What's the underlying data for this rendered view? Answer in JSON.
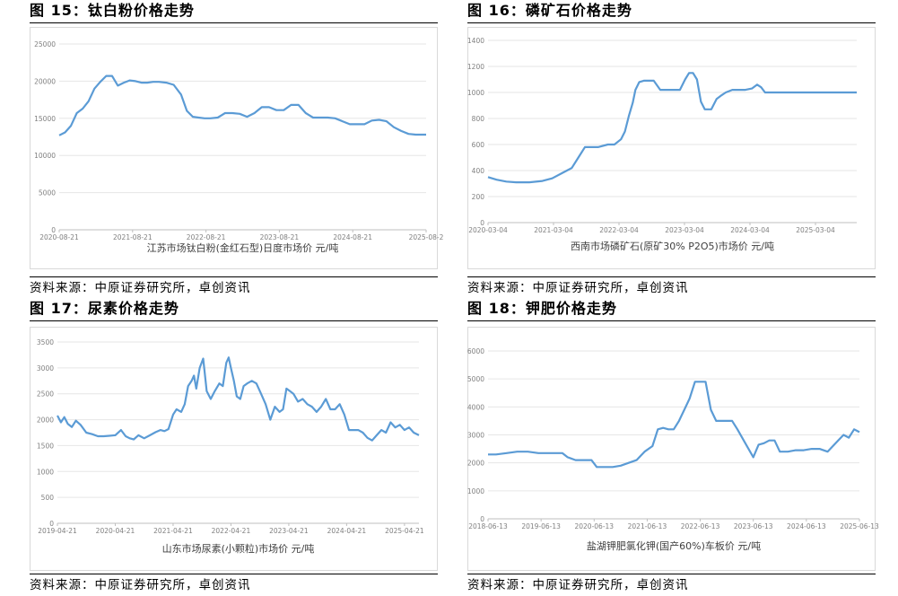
{
  "figures": [
    {
      "title": "图 15：钛白粉价格走势",
      "source": "资料来源：中原证券研究所，卓创资讯",
      "chart_data": {
        "type": "line",
        "xlabel": "江苏市场钛白粉(金红石型)日度市场价 元/吨",
        "ylabel": "",
        "ylim": [
          0,
          25000
        ],
        "yticks": [
          0,
          5000,
          10000,
          15000,
          20000,
          25000
        ],
        "xlim": [
          2020.64,
          2025.64
        ],
        "xticks": [
          2020.64,
          2021.64,
          2022.64,
          2023.64,
          2024.64,
          2025.64
        ],
        "xticklabels": [
          "2020-08-21",
          "2021-08-21",
          "2022-08-21",
          "2023-08-21",
          "2024-08-21",
          "2025-08-2"
        ],
        "grid": true,
        "color": "#5b9bd5",
        "series": [
          {
            "x": [
              2020.64,
              2020.72,
              2020.8,
              2020.88,
              2020.96,
              2021.04,
              2021.12,
              2021.2,
              2021.28,
              2021.36,
              2021.44,
              2021.52,
              2021.6,
              2021.68,
              2021.76,
              2021.84,
              2021.92,
              2022.0,
              2022.1,
              2022.2,
              2022.3,
              2022.38,
              2022.46,
              2022.54,
              2022.62,
              2022.7,
              2022.8,
              2022.9,
              2023.0,
              2023.1,
              2023.2,
              2023.3,
              2023.4,
              2023.5,
              2023.6,
              2023.7,
              2023.8,
              2023.9,
              2024.0,
              2024.1,
              2024.2,
              2024.3,
              2024.4,
              2024.5,
              2024.6,
              2024.7,
              2024.8,
              2024.9,
              2025.0,
              2025.1,
              2025.2,
              2025.3,
              2025.4,
              2025.5,
              2025.6,
              2025.64
            ],
            "y": [
              12700,
              13100,
              14000,
              15700,
              16300,
              17300,
              19000,
              19900,
              20700,
              20700,
              19400,
              19800,
              20100,
              20000,
              19800,
              19800,
              19900,
              19900,
              19800,
              19500,
              18200,
              16000,
              15200,
              15100,
              15000,
              15000,
              15100,
              15700,
              15700,
              15600,
              15200,
              15700,
              16500,
              16500,
              16100,
              16100,
              16800,
              16800,
              15700,
              15100,
              15100,
              15100,
              15000,
              14600,
              14200,
              14200,
              14200,
              14700,
              14800,
              14600,
              13800,
              13300,
              12900,
              12800,
              12800,
              12800
            ]
          }
        ]
      }
    },
    {
      "title": "图 16：磷矿石价格走势",
      "source": "资料来源：中原证券研究所，卓创资讯",
      "chart_data": {
        "type": "line",
        "xlabel": "西南市场磷矿石(原矿30% P2O5)市场价 元/吨",
        "ylabel": "",
        "ylim": [
          0,
          1400
        ],
        "yticks": [
          0,
          200,
          400,
          600,
          800,
          1000,
          1200,
          1400
        ],
        "xlim": [
          2020.17,
          2025.8
        ],
        "xticks": [
          2020.17,
          2021.17,
          2022.17,
          2023.17,
          2024.17,
          2025.17
        ],
        "xticklabels": [
          "2020-03-04",
          "2021-03-04",
          "2022-03-04",
          "2023-03-04",
          "2024-03-04",
          "2025-03-04"
        ],
        "grid": true,
        "color": "#5b9bd5",
        "series": [
          {
            "x": [
              2020.17,
              2020.3,
              2020.45,
              2020.6,
              2020.8,
              2021.0,
              2021.15,
              2021.3,
              2021.45,
              2021.55,
              2021.65,
              2021.75,
              2021.85,
              2022.0,
              2022.1,
              2022.2,
              2022.26,
              2022.32,
              2022.38,
              2022.42,
              2022.48,
              2022.55,
              2022.6,
              2022.7,
              2022.8,
              2022.9,
              2023.0,
              2023.1,
              2023.18,
              2023.24,
              2023.3,
              2023.36,
              2023.42,
              2023.48,
              2023.58,
              2023.66,
              2023.74,
              2023.8,
              2023.9,
              2024.0,
              2024.1,
              2024.2,
              2024.28,
              2024.34,
              2024.4,
              2024.6,
              2024.8,
              2025.0,
              2025.2,
              2025.4,
              2025.6,
              2025.8
            ],
            "y": [
              350,
              330,
              315,
              310,
              310,
              320,
              340,
              380,
              420,
              500,
              580,
              580,
              580,
              600,
              600,
              640,
              700,
              820,
              920,
              1020,
              1080,
              1090,
              1090,
              1090,
              1020,
              1020,
              1020,
              1020,
              1100,
              1150,
              1150,
              1100,
              930,
              870,
              870,
              950,
              980,
              1000,
              1020,
              1020,
              1020,
              1030,
              1060,
              1040,
              1000,
              1000,
              1000,
              1000,
              1000,
              1000,
              1000,
              1000
            ]
          }
        ]
      }
    },
    {
      "title": "图 17：尿素价格走势",
      "source": "资料来源：中原证券研究所，卓创资讯",
      "chart_data": {
        "type": "line",
        "xlabel": "山东市场尿素(小颗粒)市场价 元/吨",
        "ylabel": "",
        "ylim": [
          0,
          3500
        ],
        "yticks": [
          0,
          500,
          1000,
          1500,
          2000,
          2500,
          3000,
          3500
        ],
        "xlim": [
          2019.3,
          2025.55
        ],
        "xticks": [
          2019.3,
          2020.3,
          2021.3,
          2022.3,
          2023.3,
          2024.3,
          2025.3
        ],
        "xticklabels": [
          "2019-04-21",
          "2020-04-21",
          "2021-04-21",
          "2022-04-21",
          "2023-04-21",
          "2024-04-21",
          "2025-04-21"
        ],
        "grid": true,
        "color": "#5b9bd5",
        "series": [
          {
            "x": [
              2019.3,
              2019.36,
              2019.42,
              2019.48,
              2019.55,
              2019.62,
              2019.7,
              2019.8,
              2019.9,
              2020.0,
              2020.1,
              2020.2,
              2020.3,
              2020.4,
              2020.48,
              2020.55,
              2020.62,
              2020.7,
              2020.8,
              2020.9,
              2021.0,
              2021.08,
              2021.15,
              2021.22,
              2021.3,
              2021.36,
              2021.44,
              2021.5,
              2021.56,
              2021.62,
              2021.66,
              2021.7,
              2021.76,
              2021.82,
              2021.88,
              2021.95,
              2022.02,
              2022.1,
              2022.16,
              2022.22,
              2022.26,
              2022.3,
              2022.35,
              2022.4,
              2022.46,
              2022.52,
              2022.58,
              2022.66,
              2022.74,
              2022.82,
              2022.9,
              2022.98,
              2023.06,
              2023.14,
              2023.2,
              2023.26,
              2023.32,
              2023.38,
              2023.46,
              2023.54,
              2023.62,
              2023.7,
              2023.78,
              2023.86,
              2023.94,
              2024.02,
              2024.1,
              2024.18,
              2024.26,
              2024.34,
              2024.42,
              2024.5,
              2024.58,
              2024.66,
              2024.74,
              2024.82,
              2024.9,
              2024.98,
              2025.06,
              2025.14,
              2025.22,
              2025.3,
              2025.38,
              2025.46,
              2025.55
            ],
            "y": [
              2080,
              1950,
              2050,
              1920,
              1860,
              1980,
              1900,
              1750,
              1720,
              1680,
              1680,
              1690,
              1700,
              1800,
              1680,
              1640,
              1620,
              1700,
              1640,
              1700,
              1760,
              1800,
              1780,
              1820,
              2100,
              2200,
              2150,
              2300,
              2650,
              2750,
              2850,
              2600,
              3000,
              3180,
              2550,
              2400,
              2550,
              2700,
              2650,
              3100,
              3200,
              3000,
              2750,
              2450,
              2400,
              2650,
              2700,
              2750,
              2700,
              2500,
              2300,
              2000,
              2250,
              2150,
              2200,
              2600,
              2550,
              2500,
              2350,
              2400,
              2300,
              2250,
              2150,
              2250,
              2400,
              2200,
              2200,
              2300,
              2100,
              1800,
              1800,
              1800,
              1750,
              1650,
              1600,
              1700,
              1800,
              1750,
              1950,
              1850,
              1900,
              1800,
              1850,
              1750,
              1700
            ]
          }
        ]
      }
    },
    {
      "title": "图 18：钾肥价格走势",
      "source": "资料来源：中原证券研究所，卓创资讯",
      "chart_data": {
        "type": "line",
        "xlabel": "盐湖钾肥氯化钾(国产60%)车板价 元/吨",
        "ylabel": "",
        "ylim": [
          0,
          6000
        ],
        "yticks": [
          0,
          1000,
          2000,
          3000,
          4000,
          5000,
          6000
        ],
        "xlim": [
          2018.45,
          2025.45
        ],
        "xticks": [
          2018.45,
          2019.45,
          2020.45,
          2021.45,
          2022.45,
          2023.45,
          2024.45,
          2025.45
        ],
        "xticklabels": [
          "2018-06-13",
          "2019-06-13",
          "2020-06-13",
          "2021-06-13",
          "2022-06-13",
          "2023-06-13",
          "2024-06-13",
          "2025-06-13"
        ],
        "grid": true,
        "color": "#5b9bd5",
        "series": [
          {
            "x": [
              2018.45,
              2018.6,
              2018.8,
              2019.0,
              2019.2,
              2019.4,
              2019.6,
              2019.85,
              2019.95,
              2020.1,
              2020.4,
              2020.5,
              2020.6,
              2020.8,
              2020.95,
              2021.1,
              2021.25,
              2021.4,
              2021.55,
              2021.65,
              2021.75,
              2021.85,
              2021.95,
              2022.05,
              2022.15,
              2022.25,
              2022.35,
              2022.45,
              2022.55,
              2022.65,
              2022.75,
              2022.85,
              2022.95,
              2023.05,
              2023.15,
              2023.3,
              2023.45,
              2023.55,
              2023.65,
              2023.75,
              2023.85,
              2023.95,
              2024.1,
              2024.25,
              2024.4,
              2024.55,
              2024.7,
              2024.85,
              2024.95,
              2025.05,
              2025.15,
              2025.25,
              2025.35,
              2025.45
            ],
            "y": [
              2300,
              2300,
              2350,
              2400,
              2400,
              2350,
              2350,
              2350,
              2200,
              2100,
              2100,
              1850,
              1850,
              1850,
              1900,
              2000,
              2100,
              2400,
              2600,
              3200,
              3250,
              3200,
              3200,
              3500,
              3900,
              4300,
              4900,
              4900,
              4900,
              3900,
              3500,
              3500,
              3500,
              3500,
              3200,
              2700,
              2200,
              2650,
              2700,
              2800,
              2800,
              2400,
              2400,
              2450,
              2450,
              2500,
              2500,
              2400,
              2600,
              2800,
              3000,
              2900,
              3200,
              3100
            ]
          }
        ]
      }
    }
  ]
}
